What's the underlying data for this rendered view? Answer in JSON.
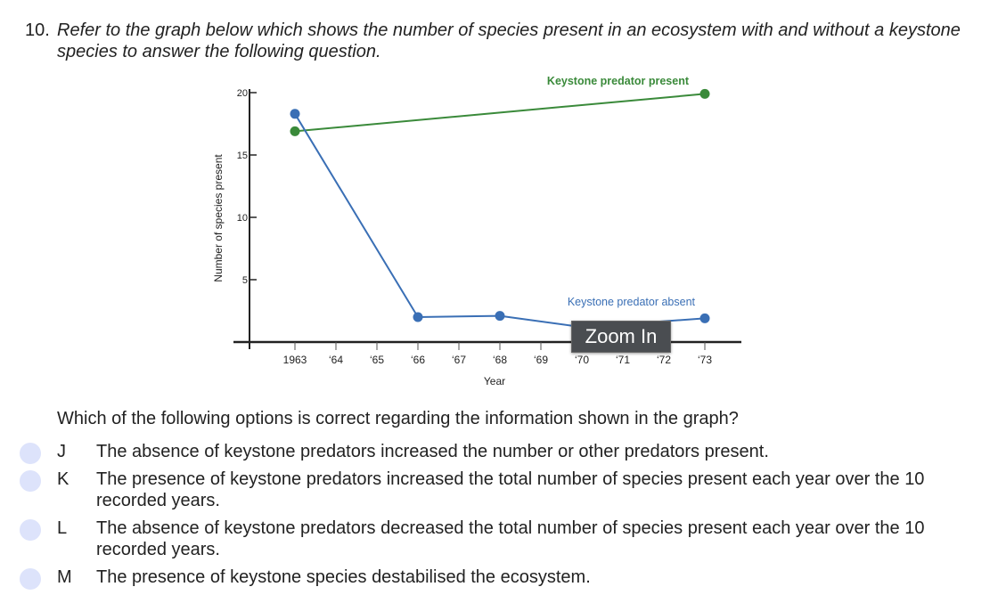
{
  "question": {
    "number": "10.",
    "text": "Refer to the graph below which shows the number of species present in an ecosystem with and without a keystone species to answer the following question.",
    "prompt": "Which of the following options is correct regarding the information shown in the graph?"
  },
  "options": [
    {
      "letter": "J",
      "text": "The absence of keystone predators increased the number or other predators present."
    },
    {
      "letter": "K",
      "text": "The presence of keystone predators increased the total number of species present each year over the 10 recorded years."
    },
    {
      "letter": "L",
      "text": "The absence of keystone predators decreased the total number of species present each year over the 10 recorded years."
    },
    {
      "letter": "M",
      "text": "The presence of keystone species destabilised the ecosystem."
    }
  ],
  "tooltip": "Zoom In",
  "chart_data": {
    "type": "line",
    "title": "",
    "xlabel": "Year",
    "ylabel": "Number of species present",
    "xlim": [
      1962.2,
      1974
    ],
    "ylim": [
      0,
      20
    ],
    "x_ticks": [
      1963,
      1964,
      1965,
      1966,
      1967,
      1968,
      1969,
      1970,
      1971,
      1972,
      1973
    ],
    "x_tick_labels": [
      "1963",
      "‘64",
      "‘65",
      "‘66",
      "‘67",
      "‘68",
      "‘69",
      "‘70",
      "‘71",
      "‘72",
      "‘73"
    ],
    "y_ticks": [
      5,
      10,
      15,
      20
    ],
    "y_tick_labels": [
      "5",
      "10",
      "15",
      "20"
    ],
    "grid": false,
    "series": [
      {
        "name": "Keystone predator present",
        "color": "#3a8a3a",
        "x": [
          1963,
          1973
        ],
        "y": [
          16.9,
          19.9
        ]
      },
      {
        "name": "Keystone predator absent",
        "color": "#3a6fb5",
        "x": [
          1963,
          1966,
          1968,
          1970,
          1973
        ],
        "y": [
          18.3,
          2.0,
          2.1,
          1.2,
          1.9
        ]
      }
    ]
  }
}
